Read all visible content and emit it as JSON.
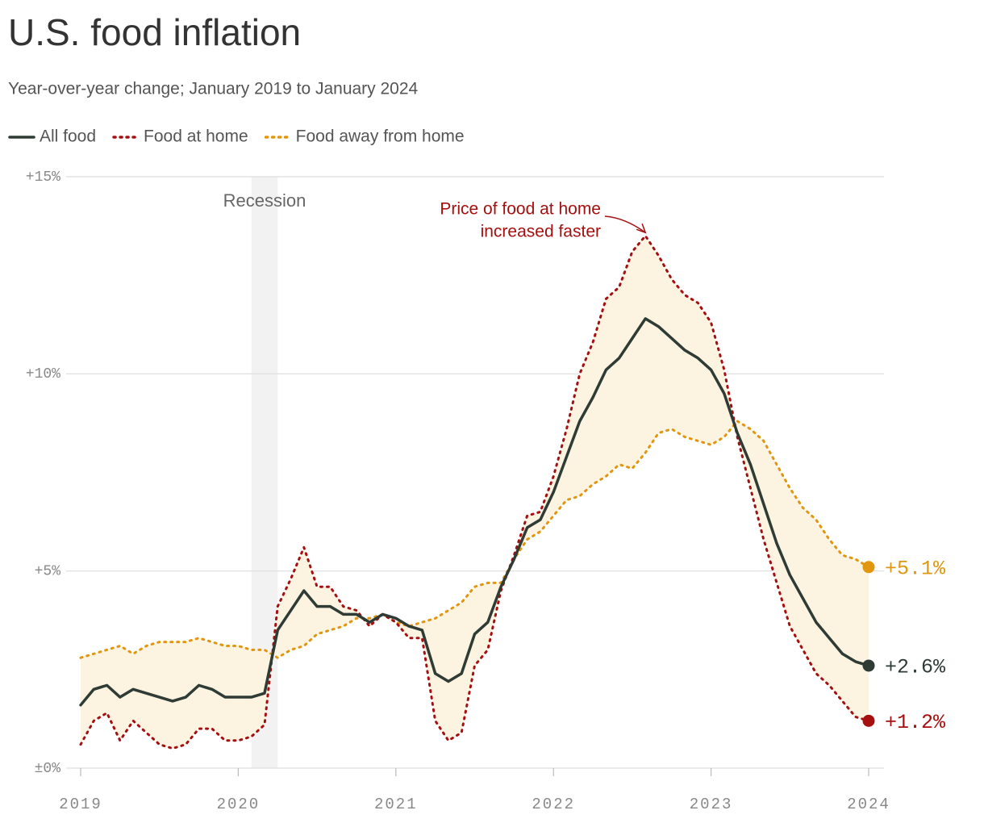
{
  "chart_data": {
    "type": "line",
    "title": "U.S. food inflation",
    "subtitle": "Year-over-year change; January 2019 to January 2024",
    "categories": [
      "2019",
      null,
      null,
      null,
      null,
      null,
      null,
      null,
      null,
      null,
      null,
      null,
      "2020",
      null,
      null,
      null,
      null,
      null,
      null,
      null,
      null,
      null,
      null,
      null,
      "2021",
      null,
      null,
      null,
      null,
      null,
      null,
      null,
      null,
      null,
      null,
      null,
      "2022",
      null,
      null,
      null,
      null,
      null,
      null,
      null,
      null,
      null,
      null,
      null,
      "2023",
      null,
      null,
      null,
      null,
      null,
      null,
      null,
      null,
      null,
      null,
      null,
      "2024"
    ],
    "series": [
      {
        "name": "All food",
        "color": "#2f3b35",
        "dash": "solid",
        "end_label": "+2.6%",
        "values": [
          1.6,
          2.0,
          2.1,
          1.8,
          2.0,
          1.9,
          1.8,
          1.7,
          1.8,
          2.1,
          2.0,
          1.8,
          1.8,
          1.8,
          1.9,
          3.5,
          4.0,
          4.5,
          4.1,
          4.1,
          3.9,
          3.9,
          3.7,
          3.9,
          3.8,
          3.6,
          3.5,
          2.4,
          2.2,
          2.4,
          3.4,
          3.7,
          4.6,
          5.3,
          6.1,
          6.3,
          7.0,
          7.9,
          8.8,
          9.4,
          10.1,
          10.4,
          10.9,
          11.4,
          11.2,
          10.9,
          10.6,
          10.4,
          10.1,
          9.5,
          8.5,
          7.7,
          6.7,
          5.7,
          4.9,
          4.3,
          3.7,
          3.3,
          2.9,
          2.7,
          2.6
        ]
      },
      {
        "name": "Food at home",
        "color": "#a50f0f",
        "dash": "dotted",
        "end_label": "+1.2%",
        "values": [
          0.6,
          1.2,
          1.4,
          0.7,
          1.2,
          0.9,
          0.6,
          0.5,
          0.6,
          1.0,
          1.0,
          0.7,
          0.7,
          0.8,
          1.1,
          4.1,
          4.8,
          5.6,
          4.6,
          4.6,
          4.1,
          4.0,
          3.6,
          3.9,
          3.7,
          3.3,
          3.3,
          1.2,
          0.7,
          0.9,
          2.6,
          3.0,
          4.5,
          5.4,
          6.4,
          6.5,
          7.4,
          8.6,
          10.0,
          10.8,
          11.9,
          12.2,
          13.1,
          13.5,
          13.0,
          12.4,
          12.0,
          11.8,
          11.3,
          10.1,
          8.4,
          7.1,
          5.8,
          4.7,
          3.6,
          3.0,
          2.4,
          2.1,
          1.7,
          1.3,
          1.2
        ]
      },
      {
        "name": "Food away from home",
        "color": "#e0960f",
        "dash": "dotted",
        "end_label": "+5.1%",
        "values": [
          2.8,
          2.9,
          3.0,
          3.1,
          2.9,
          3.1,
          3.2,
          3.2,
          3.2,
          3.3,
          3.2,
          3.1,
          3.1,
          3.0,
          3.0,
          2.8,
          3.0,
          3.1,
          3.4,
          3.5,
          3.6,
          3.8,
          3.8,
          3.9,
          3.7,
          3.6,
          3.7,
          3.8,
          4.0,
          4.2,
          4.6,
          4.7,
          4.7,
          5.3,
          5.8,
          6.0,
          6.4,
          6.8,
          6.9,
          7.2,
          7.4,
          7.7,
          7.6,
          8.0,
          8.5,
          8.6,
          8.4,
          8.3,
          8.2,
          8.4,
          8.8,
          8.6,
          8.3,
          7.7,
          7.1,
          6.6,
          6.3,
          5.8,
          5.4,
          5.3,
          5.1
        ]
      }
    ],
    "ylim": [
      0,
      15
    ],
    "yticks": [
      {
        "value": 0,
        "label": "±0%"
      },
      {
        "value": 5,
        "label": "+5%"
      },
      {
        "value": 10,
        "label": "+10%"
      },
      {
        "value": 15,
        "label": "+15%"
      }
    ],
    "grid": true,
    "band_fill": "#fdf3e1",
    "shade": {
      "label": "Recession",
      "start_index": 13,
      "end_index": 15,
      "color": "#f2f2f2"
    },
    "annotation": {
      "lines": [
        "Price of food at home",
        "increased faster"
      ],
      "series_index": 1,
      "point_index": 43
    }
  }
}
